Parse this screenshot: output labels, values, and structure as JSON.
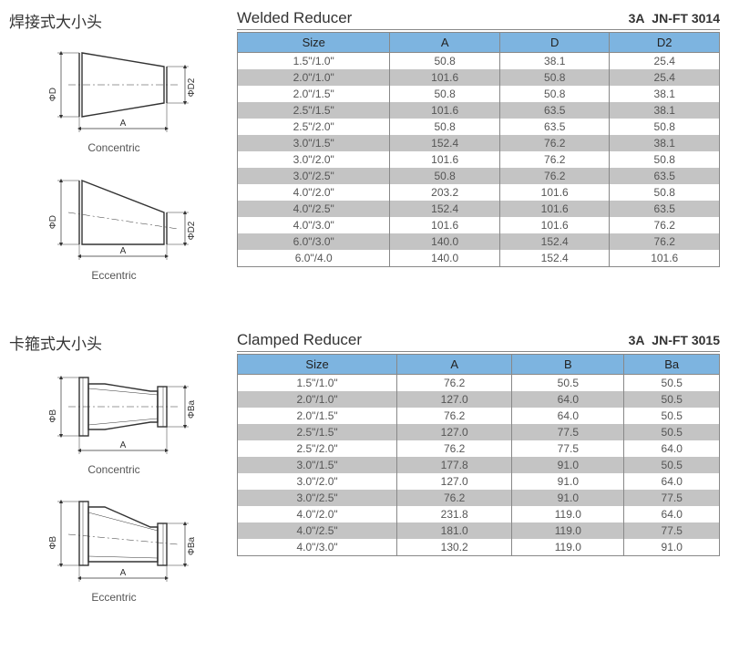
{
  "section1": {
    "cn_title": "焊接式大小头",
    "en_title": "Welded Reducer",
    "code_prefix": "3A",
    "code": "JN-FT 3014",
    "diagram1_caption": "Concentric",
    "diagram2_caption": "Eccentric",
    "dim_labels": {
      "left": "ΦD",
      "right": "ΦD2",
      "bottom": "A"
    },
    "columns": [
      "Size",
      "A",
      "D",
      "D2"
    ],
    "rows": [
      [
        "1.5\"/1.0\"",
        "50.8",
        "38.1",
        "25.4"
      ],
      [
        "2.0\"/1.0\"",
        "101.6",
        "50.8",
        "25.4"
      ],
      [
        "2.0\"/1.5\"",
        "50.8",
        "50.8",
        "38.1"
      ],
      [
        "2.5\"/1.5\"",
        "101.6",
        "63.5",
        "38.1"
      ],
      [
        "2.5\"/2.0\"",
        "50.8",
        "63.5",
        "50.8"
      ],
      [
        "3.0\"/1.5\"",
        "152.4",
        "76.2",
        "38.1"
      ],
      [
        "3.0\"/2.0\"",
        "101.6",
        "76.2",
        "50.8"
      ],
      [
        "3.0\"/2.5\"",
        "50.8",
        "76.2",
        "63.5"
      ],
      [
        "4.0\"/2.0\"",
        "203.2",
        "101.6",
        "50.8"
      ],
      [
        "4.0\"/2.5\"",
        "152.4",
        "101.6",
        "63.5"
      ],
      [
        "4.0\"/3.0\"",
        "101.6",
        "101.6",
        "76.2"
      ],
      [
        "6.0\"/3.0\"",
        "140.0",
        "152.4",
        "76.2"
      ],
      [
        "6.0\"/4.0",
        "140.0",
        "152.4",
        "101.6"
      ]
    ]
  },
  "section2": {
    "cn_title": "卡箍式大小头",
    "en_title": "Clamped Reducer",
    "code_prefix": "3A",
    "code": "JN-FT 3015",
    "diagram1_caption": "Concentric",
    "diagram2_caption": "Eccentric",
    "dim_labels": {
      "left": "ΦB",
      "right": "ΦBa",
      "bottom": "A"
    },
    "columns": [
      "Size",
      "A",
      "B",
      "Ba"
    ],
    "rows": [
      [
        "1.5\"/1.0\"",
        "76.2",
        "50.5",
        "50.5"
      ],
      [
        "2.0\"/1.0\"",
        "127.0",
        "64.0",
        "50.5"
      ],
      [
        "2.0\"/1.5\"",
        "76.2",
        "64.0",
        "50.5"
      ],
      [
        "2.5\"/1.5\"",
        "127.0",
        "77.5",
        "50.5"
      ],
      [
        "2.5\"/2.0\"",
        "76.2",
        "77.5",
        "64.0"
      ],
      [
        "3.0\"/1.5\"",
        "177.8",
        "91.0",
        "50.5"
      ],
      [
        "3.0\"/2.0\"",
        "127.0",
        "91.0",
        "64.0"
      ],
      [
        "3.0\"/2.5\"",
        "76.2",
        "91.0",
        "77.5"
      ],
      [
        "4.0\"/2.0\"",
        "231.8",
        "119.0",
        "64.0"
      ],
      [
        "4.0\"/2.5\"",
        "181.0",
        "119.0",
        "77.5"
      ],
      [
        "4.0\"/3.0\"",
        "130.2",
        "119.0",
        "91.0"
      ]
    ]
  },
  "style": {
    "header_bg": "#7db4e0",
    "row_odd_bg": "#ffffff",
    "row_even_bg": "#c4c4c4",
    "border_color": "#888888",
    "text_color": "#555555"
  }
}
